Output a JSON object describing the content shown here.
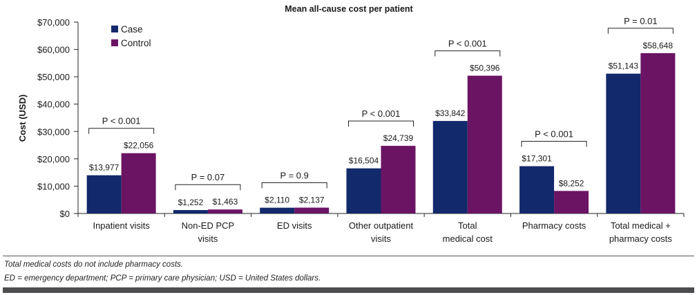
{
  "chart_data": {
    "type": "bar",
    "title": "Mean all-cause cost per patient",
    "xlabel": "",
    "ylabel": "Cost (USD)",
    "ylim": [
      0,
      70000
    ],
    "yticks": [
      0,
      10000,
      20000,
      30000,
      40000,
      50000,
      60000,
      70000
    ],
    "ytick_labels": [
      "$0",
      "$10,000",
      "$20,000",
      "$30,000",
      "$40,000",
      "$50,000",
      "$60,000",
      "$70,000"
    ],
    "categories": [
      [
        "Inpatient visits"
      ],
      [
        "Non-ED PCP",
        "visits"
      ],
      [
        "ED visits"
      ],
      [
        "Other outpatient",
        "visits"
      ],
      [
        "Total",
        "medical cost"
      ],
      [
        "Pharmacy costs"
      ],
      [
        "Total medical +",
        "pharmacy costs"
      ]
    ],
    "series": [
      {
        "name": "Case",
        "color": "#12296b",
        "values": [
          13977,
          1252,
          2110,
          16504,
          33842,
          17301,
          51143
        ],
        "labels": [
          "$13,977",
          "$1,252",
          "$2,110",
          "$16,504",
          "$33,842",
          "$17,301",
          "$51,143"
        ]
      },
      {
        "name": "Control",
        "color": "#6b1464",
        "values": [
          22056,
          1463,
          2137,
          24739,
          50396,
          8252,
          58648
        ],
        "labels": [
          "$22,056",
          "$1,463",
          "$2,137",
          "$24,739",
          "$50,396",
          "$8,252",
          "$58,648"
        ]
      }
    ],
    "p_values": [
      "P < 0.001",
      "P = 0.07",
      "P = 0.9",
      "P < 0.001",
      "P < 0.001",
      "P < 0.001",
      "P = 0.01"
    ],
    "legend": "top-left",
    "grid": false
  },
  "footnotes": [
    "Total medical costs do not include pharmacy costs.",
    "ED = emergency department; PCP = primary care physician; USD = United States dollars."
  ]
}
